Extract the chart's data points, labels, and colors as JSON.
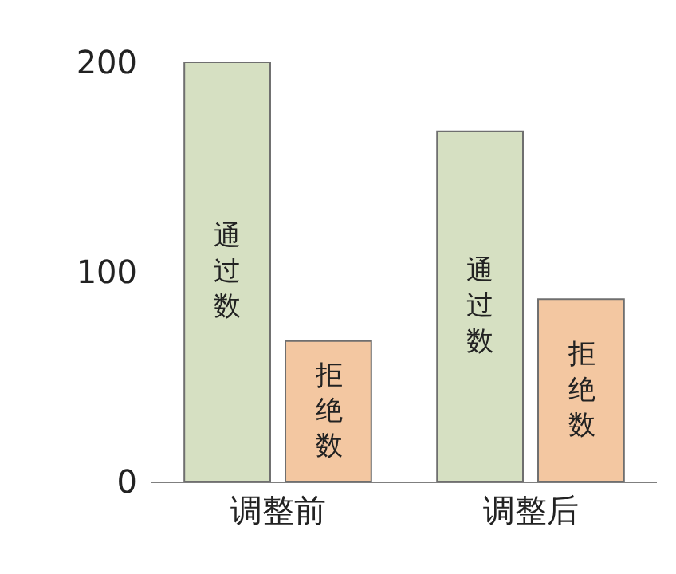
{
  "chart_data": {
    "type": "bar",
    "categories": [
      "调整前",
      "调整后"
    ],
    "series": [
      {
        "name": "通过数",
        "color": "#d6e0c2",
        "values": [
          200,
          167
        ]
      },
      {
        "name": "拒绝数",
        "color": "#f3c7a1",
        "values": [
          67,
          87
        ]
      }
    ],
    "ylim": [
      0,
      200
    ],
    "yticks": [
      0,
      100,
      200
    ],
    "legend": false
  }
}
